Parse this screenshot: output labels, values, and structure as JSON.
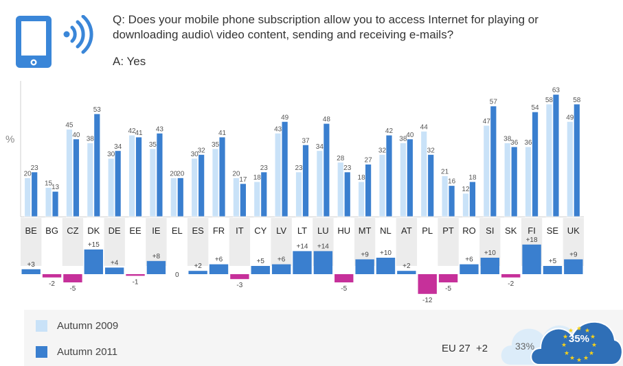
{
  "header": {
    "question": "Q: Does your mobile phone subscription allow you to access Internet for playing or downloading audio\\ video content, sending and receiving e-mails?",
    "answer": "A: Yes",
    "icon": "tablet-wifi-icon"
  },
  "chart_data": {
    "type": "bar",
    "ylabel": "%",
    "categories": [
      "BE",
      "BG",
      "CZ",
      "DK",
      "DE",
      "EE",
      "IE",
      "EL",
      "ES",
      "FR",
      "IT",
      "CY",
      "LV",
      "LT",
      "LU",
      "HU",
      "MT",
      "NL",
      "AT",
      "PL",
      "PT",
      "RO",
      "SI",
      "SK",
      "FI",
      "SE",
      "UK"
    ],
    "series": [
      {
        "name": "Autumn 2009",
        "color": "#c9e2f8",
        "values": [
          20,
          15,
          45,
          38,
          30,
          42,
          35,
          20,
          30,
          35,
          20,
          18,
          43,
          23,
          34,
          28,
          18,
          32,
          38,
          44,
          21,
          12,
          47,
          38,
          36,
          58,
          49
        ]
      },
      {
        "name": "Autumn 2011",
        "color": "#3a7fcf",
        "values": [
          23,
          13,
          40,
          53,
          34,
          41,
          43,
          20,
          32,
          41,
          17,
          23,
          49,
          37,
          48,
          23,
          27,
          42,
          40,
          32,
          16,
          18,
          57,
          36,
          54,
          63,
          58
        ]
      }
    ],
    "difference": {
      "labels": [
        "+3",
        "-2",
        "-5",
        "+15",
        "+4",
        "-1",
        "+8",
        "0",
        "+2",
        "+6",
        "-3",
        "+5",
        "+6",
        "+14",
        "+14",
        "-5",
        "+9",
        "+10",
        "+2",
        "-12",
        "-5",
        "+6",
        "+10",
        "-2",
        "+18",
        "+5",
        "+9"
      ],
      "values": [
        3,
        -2,
        -5,
        15,
        4,
        -1,
        8,
        0,
        2,
        6,
        -3,
        5,
        6,
        14,
        14,
        -5,
        9,
        10,
        2,
        -12,
        -5,
        6,
        10,
        -2,
        18,
        5,
        9
      ],
      "positive_color": "#3a7fcf",
      "negative_color": "#c6309a"
    },
    "ylim": [
      0,
      65
    ]
  },
  "legend": {
    "autumn_2009": "Autumn 2009",
    "autumn_2011": "Autumn 2011"
  },
  "eu": {
    "label": "EU 27",
    "change": "+2",
    "previous": "33%",
    "current": "35%"
  }
}
